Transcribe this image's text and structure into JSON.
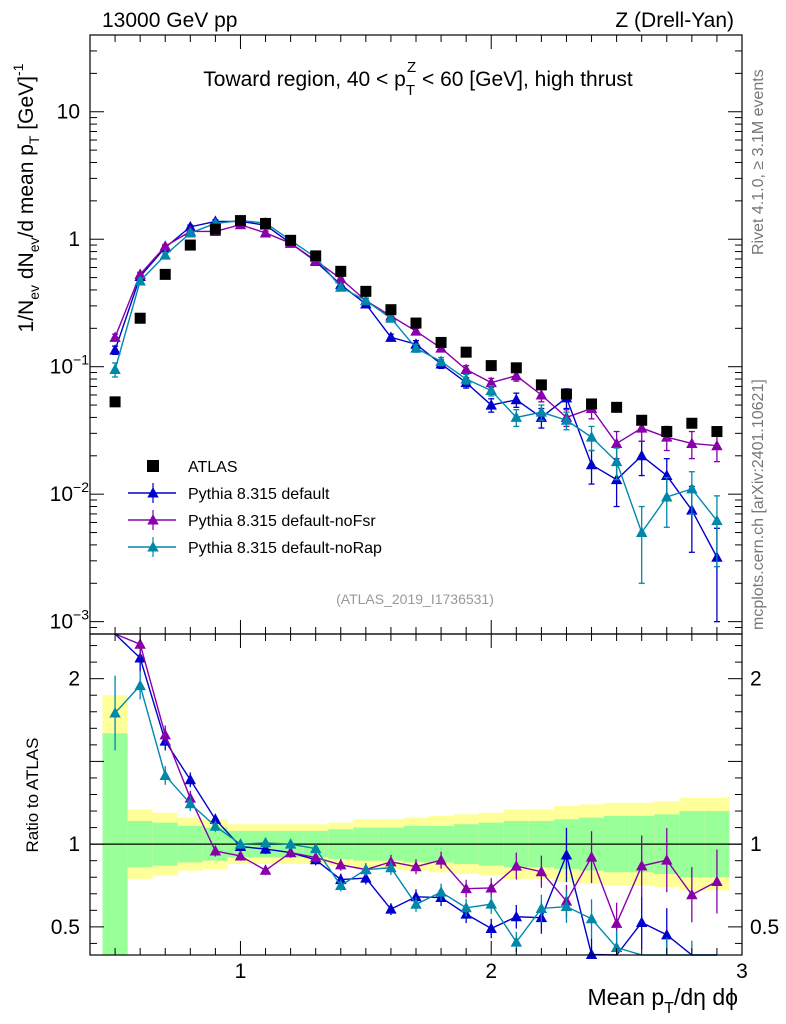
{
  "chart_data": {
    "type": "scatter",
    "header_left": "13000 GeV pp",
    "header_right": "Z (Drell-Yan)",
    "title": "Toward region, 40 < p_T^Z < 60 [GeV], high thrust",
    "title_parts": {
      "pre": "Toward region, 40 < p",
      "sub": "T",
      "sup": "Z",
      "post": " < 60 [GeV], high thrust"
    },
    "ylabel": "1/N_ev dN_ev/d mean p_T [GeV]^-1",
    "ratio_ylabel": "Ratio to ATLAS",
    "xlabel": "Mean p_T/dη dϕ",
    "xlabel_parts": {
      "pre": "Mean p",
      "sub": "T",
      "post": "/dη dϕ"
    },
    "analysis_id": "(ATLAS_2019_I1736531)",
    "side_text_top": "Rivet 4.1.0, ≥ 3.1M events",
    "side_text_bottom": "mcplots.cern.ch [arXiv:2401.10621]",
    "xlim": [
      0.4,
      3.0
    ],
    "ylim": [
      0.0008,
      40
    ],
    "ratio_ylim": [
      0.33,
      2.27
    ],
    "x_ticks": [
      "1",
      "2",
      "3"
    ],
    "y_ticks": [
      "10^-3",
      "10^-2",
      "10^-1",
      "1",
      "10"
    ],
    "ratio_ticks": [
      "0.5",
      "1",
      "2"
    ],
    "x": [
      0.5,
      0.6,
      0.7,
      0.8,
      0.9,
      1.0,
      1.1,
      1.2,
      1.3,
      1.4,
      1.5,
      1.6,
      1.7,
      1.8,
      1.9,
      2.0,
      2.1,
      2.2,
      2.3,
      2.4,
      2.5,
      2.6,
      2.7,
      2.8,
      2.9
    ],
    "data": {
      "name": "ATLAS",
      "color": "#000000",
      "values": [
        0.053,
        0.24,
        0.53,
        0.9,
        1.2,
        1.4,
        1.33,
        0.98,
        0.74,
        0.56,
        0.39,
        0.28,
        0.22,
        0.155,
        0.13,
        0.102,
        0.098,
        0.072,
        0.061,
        0.051,
        0.048,
        0.038,
        0.031,
        0.036,
        0.031
      ],
      "band_inner": [
        0.67,
        0.14,
        0.13,
        0.11,
        0.1,
        0.08,
        0.08,
        0.08,
        0.08,
        0.09,
        0.1,
        0.1,
        0.11,
        0.11,
        0.12,
        0.13,
        0.14,
        0.14,
        0.15,
        0.16,
        0.17,
        0.17,
        0.18,
        0.2,
        0.2
      ],
      "band_outer": [
        0.9,
        0.21,
        0.19,
        0.16,
        0.15,
        0.12,
        0.12,
        0.12,
        0.12,
        0.13,
        0.15,
        0.15,
        0.16,
        0.17,
        0.18,
        0.19,
        0.21,
        0.21,
        0.23,
        0.24,
        0.25,
        0.25,
        0.26,
        0.28,
        0.28
      ]
    },
    "series": [
      {
        "name": "Pythia 8.315 default",
        "color": "#0000cc",
        "values": [
          0.135,
          0.51,
          0.86,
          1.25,
          1.38,
          1.38,
          1.29,
          0.93,
          0.67,
          0.44,
          0.31,
          0.17,
          0.15,
          0.105,
          0.075,
          0.05,
          0.055,
          0.04,
          0.057,
          0.017,
          0.013,
          0.02,
          0.014,
          0.0075,
          0.0032
        ],
        "errors": [
          0.01,
          0.02,
          0.03,
          0.04,
          0.04,
          0.04,
          0.04,
          0.03,
          0.025,
          0.02,
          0.015,
          0.01,
          0.01,
          0.008,
          0.007,
          0.006,
          0.007,
          0.007,
          0.01,
          0.005,
          0.005,
          0.006,
          0.005,
          0.004,
          0.0022
        ]
      },
      {
        "name": "Pythia 8.315 default-noFsr",
        "color": "#8800aa",
        "values": [
          0.17,
          0.53,
          0.88,
          1.15,
          1.15,
          1.3,
          1.12,
          0.93,
          0.68,
          0.49,
          0.33,
          0.25,
          0.19,
          0.14,
          0.095,
          0.075,
          0.085,
          0.06,
          0.04,
          0.047,
          0.025,
          0.033,
          0.028,
          0.025,
          0.024
        ],
        "errors": [
          0.01,
          0.02,
          0.03,
          0.04,
          0.04,
          0.04,
          0.04,
          0.03,
          0.025,
          0.02,
          0.015,
          0.012,
          0.01,
          0.008,
          0.007,
          0.006,
          0.008,
          0.007,
          0.006,
          0.008,
          0.006,
          0.007,
          0.006,
          0.006,
          0.006
        ]
      },
      {
        "name": "Pythia 8.315 default-noRap",
        "color": "#0088aa",
        "values": [
          0.095,
          0.47,
          0.75,
          1.12,
          1.33,
          1.4,
          1.34,
          0.98,
          0.72,
          0.42,
          0.33,
          0.24,
          0.14,
          0.11,
          0.08,
          0.065,
          0.04,
          0.044,
          0.038,
          0.028,
          0.018,
          0.005,
          0.0095,
          0.011,
          0.0062
        ],
        "errors": [
          0.012,
          0.02,
          0.03,
          0.04,
          0.04,
          0.04,
          0.04,
          0.03,
          0.025,
          0.02,
          0.015,
          0.012,
          0.01,
          0.008,
          0.007,
          0.006,
          0.006,
          0.006,
          0.006,
          0.006,
          0.005,
          0.003,
          0.004,
          0.004,
          0.0035
        ]
      }
    ],
    "legend_position": "lower-left"
  }
}
